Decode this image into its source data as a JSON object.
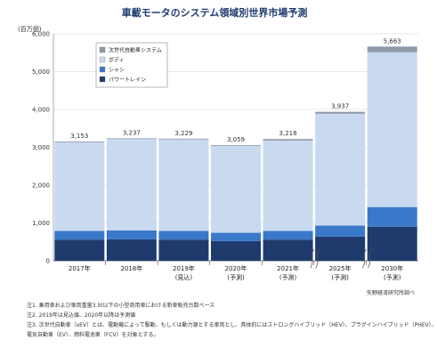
{
  "page": {
    "title": "車載モータのシステム領域別世界市場予測",
    "unit": "(百万個)",
    "source": "矢野経済研究所調べ",
    "notes": [
      "注1. 乗用車および車両重量3.5t以下の小型商用車における新車販売台数ベース",
      "注2. 2019年は見込値、2020年以降は予測値",
      "注3. 次世代自動車（xEV）とは、電動機によって駆動、もしくは動力源とする車両とし、具体的にはストロングハイブリッド（HEV）、プラグインハイブリッド（PHEV）、",
      "電気自動車（EV）、燃料電池車（FCV）を対象とする。"
    ]
  },
  "chart_data": {
    "type": "bar",
    "stacked": true,
    "title": "車載モータのシステム領域別世界市場予測",
    "ylabel": "(百万個)",
    "ylim": [
      0,
      6000
    ],
    "yticks": [
      0,
      1000,
      2000,
      3000,
      4000,
      5000,
      6000
    ],
    "ytick_labels": [
      "0",
      "1,000",
      "2,000",
      "3,000",
      "4,000",
      "5,000",
      "6,000"
    ],
    "grid": true,
    "legend_position": "top-left",
    "categories": [
      {
        "line1": "2017年",
        "line2": ""
      },
      {
        "line1": "2018年",
        "line2": ""
      },
      {
        "line1": "2019年",
        "line2": "(見込)"
      },
      {
        "line1": "2020年",
        "line2": "(予測)"
      },
      {
        "line1": "2021年",
        "line2": "(予測)"
      },
      {
        "line1": "2025年",
        "line2": "(予測)"
      },
      {
        "line1": "2030年",
        "line2": "(予測)"
      }
    ],
    "series": [
      {
        "name": "パワートレイン",
        "color": "#1f3b6e",
        "values": [
          560,
          570,
          560,
          520,
          560,
          640,
          900
        ]
      },
      {
        "name": "シャシ",
        "color": "#3a78c9",
        "values": [
          230,
          230,
          230,
          220,
          230,
          290,
          520
        ]
      },
      {
        "name": "ボディ",
        "color": "#c9d9f0",
        "values": [
          2343,
          2417,
          2419,
          2299,
          2388,
          2957,
          4093
        ]
      },
      {
        "name": "次世代自動車システム",
        "color": "#8f9aa6",
        "values": [
          20,
          20,
          20,
          20,
          40,
          50,
          150
        ]
      }
    ],
    "totals": [
      3153,
      3237,
      3229,
      3059,
      3218,
      3937,
      5663
    ],
    "total_labels": [
      "3,153",
      "3,237",
      "3,229",
      "3,059",
      "3,218",
      "3,937",
      "5,663"
    ],
    "legend_order": [
      "次世代自動車システム",
      "ボディ",
      "シャシ",
      "パワートレイン"
    ],
    "axis_breaks_before": [
      5,
      6
    ]
  }
}
